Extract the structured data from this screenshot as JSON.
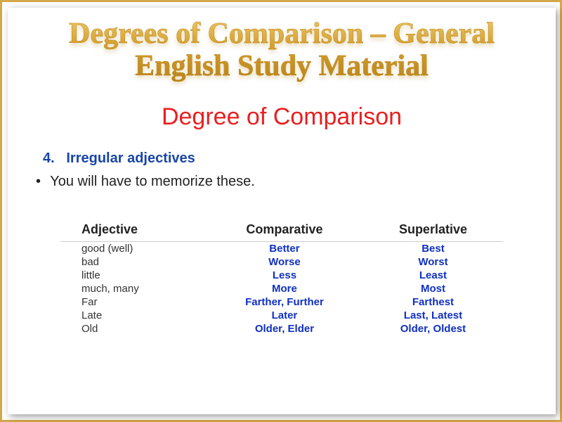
{
  "title": {
    "line1": "Degrees of Comparison – General",
    "line2": "English Study Material"
  },
  "subtitle": "Degree of Comparison",
  "section": {
    "number": "4.",
    "label": "Irregular adjectives"
  },
  "instruction": "You will have to memorize these.",
  "table": {
    "headers": {
      "col1": "Adjective",
      "col2": "Comparative",
      "col3": "Superlative"
    },
    "rows": [
      {
        "adjective": "good (well)",
        "comparative": "Better",
        "superlative": "Best"
      },
      {
        "adjective": "bad",
        "comparative": "Worse",
        "superlative": "Worst"
      },
      {
        "adjective": "little",
        "comparative": "Less",
        "superlative": "Least"
      },
      {
        "adjective": "much, many",
        "comparative": "More",
        "superlative": "Most"
      },
      {
        "adjective": "Far",
        "comparative": "Farther, Further",
        "superlative": "Farthest"
      },
      {
        "adjective": "Late",
        "comparative": "Later",
        "superlative": "Last, Latest"
      },
      {
        "adjective": "Old",
        "comparative": "Older, Elder",
        "superlative": "Older, Oldest"
      }
    ]
  },
  "colors": {
    "frame_border": "#d4a84a",
    "title_gradient_top": "#f5d77a",
    "title_gradient_bottom": "#b8841a",
    "subtitle": "#e82020",
    "section_label": "#1845a8",
    "table_value": "#1030c0",
    "text": "#222222"
  },
  "typography": {
    "title_font": "Times New Roman",
    "title_size_pt": 42,
    "subtitle_size_pt": 34,
    "section_size_pt": 20,
    "table_header_size_pt": 18,
    "table_cell_size_pt": 15
  }
}
